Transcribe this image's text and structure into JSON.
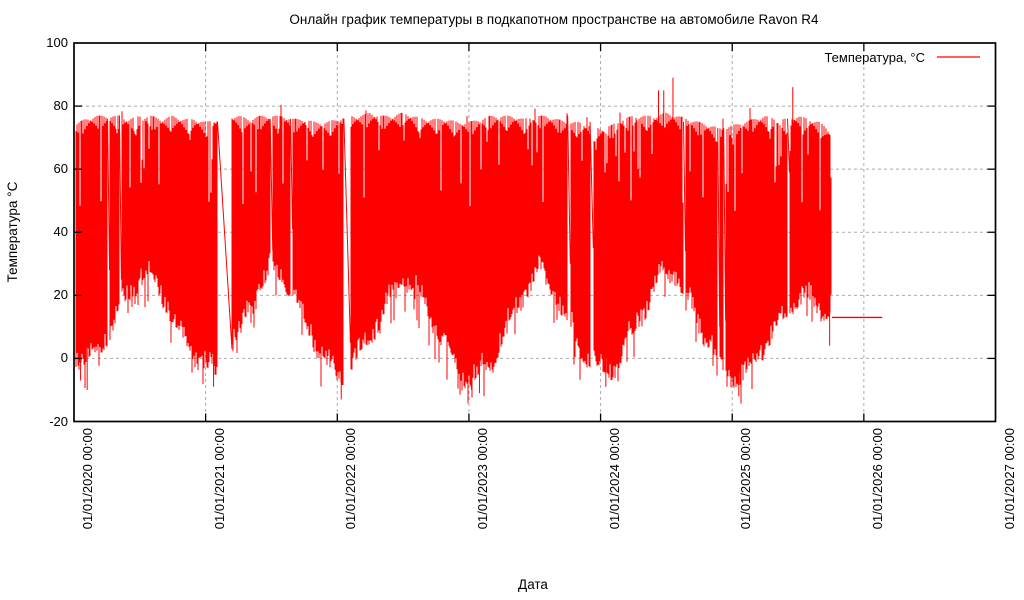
{
  "title": "Онлайн график температуры в подкапотном пространстве на автомобиле Ravon R4",
  "x_axis": {
    "label": "Дата",
    "tick_labels": [
      "01/01/2020 00:00",
      "01/01/2021 00:00",
      "01/01/2022 00:00",
      "01/01/2023 00:00",
      "01/01/2024 00:00",
      "01/01/2025 00:00",
      "01/01/2026 00:00",
      "01/01/2027 00:00"
    ],
    "tick_years": [
      2020,
      2021,
      2022,
      2023,
      2024,
      2025,
      2026,
      2027
    ]
  },
  "y_axis": {
    "label": "Температура °C",
    "ticks": [
      100,
      80,
      60,
      40,
      20,
      0,
      -20
    ],
    "range": [
      -20,
      100
    ]
  },
  "legend": {
    "label": "Температура, °C",
    "color": "#ff0000",
    "position": "top-right"
  },
  "colors": {
    "series": "#ff0000",
    "grid": "#ababab",
    "border": "#000000",
    "background": "#ffffff",
    "text": "#000000"
  },
  "chart_data": {
    "type": "line",
    "title": "Онлайн график температуры в подкапотном пространстве на автомобиле Ravon R4",
    "xlabel": "Дата",
    "ylabel": "Температура °C",
    "series": [
      {
        "name": "Температура, °C",
        "color": "#ff0000"
      }
    ],
    "x_range_years": [
      2020,
      2027
    ],
    "ylim": [
      -20,
      100
    ],
    "grid": true,
    "legend_position": "top-right",
    "data_start": 2020.015,
    "data_end": 2025.757,
    "monthly_envelope": {
      "start": "2020-01",
      "min": [
        0,
        -2,
        2,
        7,
        13,
        19,
        23,
        24,
        17,
        9,
        3,
        -1,
        -4,
        -6,
        0,
        8,
        15,
        21,
        26,
        24,
        17,
        9,
        2,
        -4,
        -8,
        -4,
        1,
        7,
        13,
        19,
        23,
        21,
        13,
        6,
        0,
        -5,
        -9,
        -6,
        -1,
        6,
        13,
        19,
        24,
        25,
        16,
        8,
        1,
        -3,
        -6,
        -5,
        1,
        8,
        15,
        22,
        26,
        23,
        15,
        7,
        1,
        -6,
        -8,
        -7,
        -1,
        4,
        9,
        14,
        18,
        16,
        12,
        13
      ],
      "max": [
        74,
        76,
        77,
        77,
        77,
        76,
        77,
        77,
        76,
        77,
        76,
        76,
        75,
        76,
        77,
        77,
        76,
        77,
        77,
        77,
        76,
        76,
        75,
        75,
        76,
        77,
        77,
        78,
        77,
        77,
        78,
        77,
        76,
        76,
        76,
        75,
        75,
        76,
        77,
        77,
        77,
        76,
        77,
        77,
        76,
        75,
        75,
        74,
        73,
        74,
        76,
        77,
        77,
        77,
        78,
        77,
        76,
        75,
        74,
        73,
        74,
        75,
        76,
        77,
        76,
        76,
        77,
        76,
        75,
        72
      ]
    },
    "gaps": [
      {
        "from_x": 2020.255,
        "to_x": 2020.27,
        "from_v": 76,
        "to_v": 28
      },
      {
        "from_x": 2020.345,
        "to_x": 2020.36,
        "from_v": 77,
        "to_v": 25
      },
      {
        "from_x": 2021.09,
        "to_x": 2021.2,
        "from_v": 75,
        "to_v": 3
      },
      {
        "from_x": 2021.49,
        "to_x": 2021.51,
        "from_v": 76,
        "to_v": 34
      },
      {
        "from_x": 2021.645,
        "to_x": 2021.66,
        "from_v": 76,
        "to_v": 41
      },
      {
        "from_x": 2022.05,
        "to_x": 2022.1,
        "from_v": 76,
        "to_v": 5
      },
      {
        "from_x": 2023.75,
        "to_x": 2023.77,
        "from_v": 77,
        "to_v": 30
      },
      {
        "from_x": 2023.92,
        "to_x": 2023.945,
        "from_v": 75,
        "to_v": 35
      },
      {
        "from_x": 2024.63,
        "to_x": 2024.645,
        "from_v": 75,
        "to_v": 34
      },
      {
        "from_x": 2024.89,
        "to_x": 2024.905,
        "from_v": 73,
        "to_v": 10
      },
      {
        "from_x": 2024.935,
        "to_x": 2024.95,
        "from_v": 73,
        "to_v": 12
      },
      {
        "from_x": 2025.42,
        "to_x": 2025.435,
        "from_v": 76,
        "to_v": 59
      }
    ],
    "spikes_up": [
      {
        "x": 2024.44,
        "value": 85
      },
      {
        "x": 2024.48,
        "value": 85
      },
      {
        "x": 2024.55,
        "value": 89
      },
      {
        "x": 2025.46,
        "value": 86
      }
    ],
    "spikes_down": [
      {
        "x": 2020.05,
        "value": -7
      },
      {
        "x": 2020.1,
        "value": -10
      },
      {
        "x": 2021.06,
        "value": -9
      },
      {
        "x": 2022.03,
        "value": -13
      },
      {
        "x": 2023.02,
        "value": -10
      },
      {
        "x": 2023.08,
        "value": -11
      },
      {
        "x": 2024.04,
        "value": -9
      },
      {
        "x": 2025.05,
        "value": -12
      },
      {
        "x": 2025.74,
        "value": 4
      }
    ],
    "tail": {
      "value": 13,
      "from_x": 2025.758,
      "to_x": 2026.14
    }
  }
}
